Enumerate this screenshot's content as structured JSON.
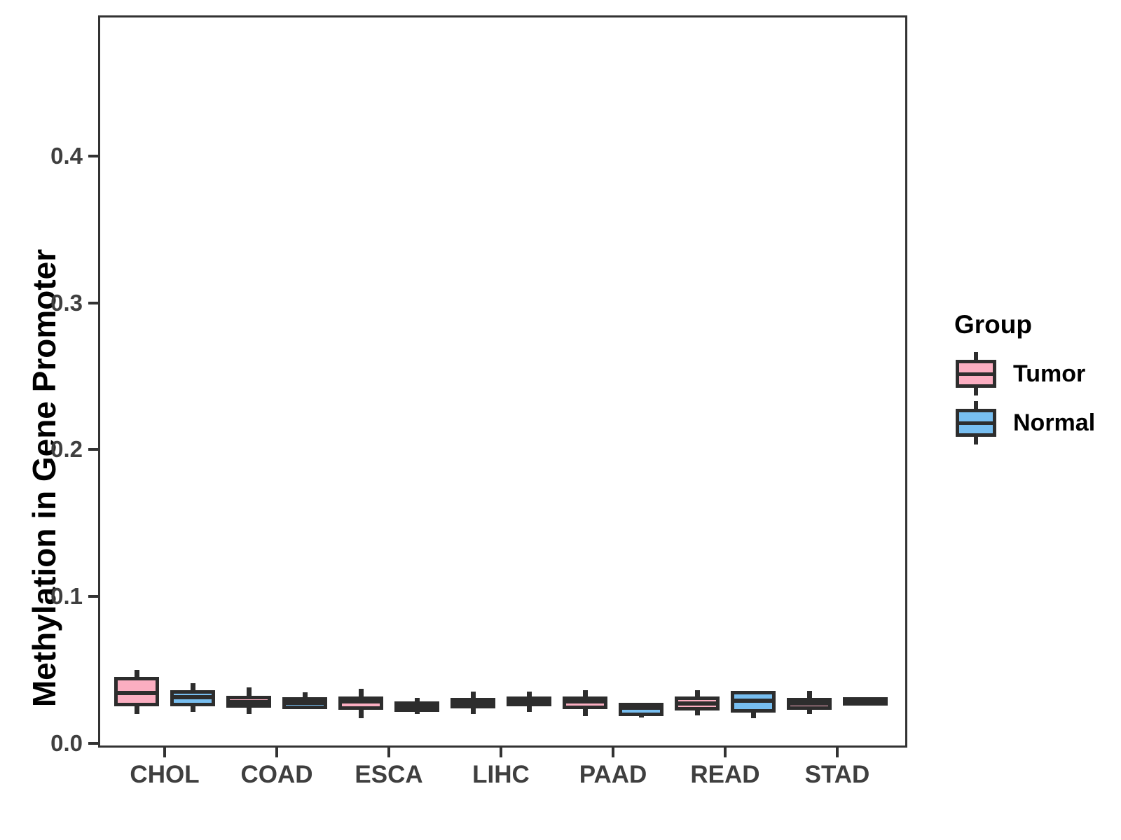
{
  "figure": {
    "background": "#FFFFFF",
    "description": "Grouped boxplot of methylation in gene promoter, tumor vs normal, across 7 cancer types"
  },
  "style": {
    "box_line_color": "#2D2D2D",
    "axis_line_color": "#333333",
    "tick_text_color": "#3F3F3F",
    "title_text_color": "#000000",
    "tumor_fill": "#FBAEC1",
    "normal_fill": "#77BEF0"
  },
  "legend": {
    "title": "Group",
    "entries": [
      {
        "label": "Tumor",
        "fill": "#FBAEC1"
      },
      {
        "label": "Normal",
        "fill": "#77BEF0"
      }
    ]
  },
  "chart_data": {
    "type": "boxplot",
    "title": "",
    "xlabel": "",
    "ylabel": "Methylation in Gene Promoter",
    "categories": [
      "CHOL",
      "COAD",
      "ESCA",
      "LIHC",
      "PAAD",
      "READ",
      "STAD"
    ],
    "y_ticks": [
      0.0,
      0.1,
      0.2,
      0.3,
      0.4
    ],
    "y_tick_labels": [
      "0.0",
      "0.1",
      "0.2",
      "0.3",
      "0.4"
    ],
    "ylim": [
      -0.003,
      0.496
    ],
    "grid": false,
    "legend_title": "Group",
    "legend_position": "right",
    "series": [
      {
        "name": "Tumor",
        "fill": "#FBAEC1",
        "boxes": [
          {
            "category": "CHOL",
            "whisker_low": 0.02,
            "q1": 0.026,
            "median": 0.034,
            "q3": 0.044,
            "whisker_high": 0.05
          },
          {
            "category": "COAD",
            "whisker_low": 0.02,
            "q1": 0.025,
            "median": 0.028,
            "q3": 0.0315,
            "whisker_high": 0.038
          },
          {
            "category": "ESCA",
            "whisker_low": 0.017,
            "q1": 0.0235,
            "median": 0.0285,
            "q3": 0.031,
            "whisker_high": 0.037
          },
          {
            "category": "LIHC",
            "whisker_low": 0.02,
            "q1": 0.0245,
            "median": 0.027,
            "q3": 0.03,
            "whisker_high": 0.035
          },
          {
            "category": "PAAD",
            "whisker_low": 0.0185,
            "q1": 0.024,
            "median": 0.0285,
            "q3": 0.031,
            "whisker_high": 0.036
          },
          {
            "category": "READ",
            "whisker_low": 0.019,
            "q1": 0.023,
            "median": 0.027,
            "q3": 0.031,
            "whisker_high": 0.036
          },
          {
            "category": "STAD",
            "whisker_low": 0.02,
            "q1": 0.0235,
            "median": 0.027,
            "q3": 0.03,
            "whisker_high": 0.0355
          }
        ]
      },
      {
        "name": "Normal",
        "fill": "#77BEF0",
        "boxes": [
          {
            "category": "CHOL",
            "whisker_low": 0.0215,
            "q1": 0.026,
            "median": 0.0315,
            "q3": 0.035,
            "whisker_high": 0.041
          },
          {
            "category": "COAD",
            "whisker_low": 0.023,
            "q1": 0.024,
            "median": 0.0275,
            "q3": 0.0305,
            "whisker_high": 0.0345
          },
          {
            "category": "ESCA",
            "whisker_low": 0.02,
            "q1": 0.0225,
            "median": 0.025,
            "q3": 0.0275,
            "whisker_high": 0.031
          },
          {
            "category": "LIHC",
            "whisker_low": 0.0215,
            "q1": 0.026,
            "median": 0.0285,
            "q3": 0.031,
            "whisker_high": 0.035
          },
          {
            "category": "PAAD",
            "whisker_low": 0.0175,
            "q1": 0.0195,
            "median": 0.024,
            "q3": 0.0265,
            "whisker_high": 0.027
          },
          {
            "category": "READ",
            "whisker_low": 0.017,
            "q1": 0.022,
            "median": 0.029,
            "q3": 0.0345,
            "whisker_high": 0.035
          },
          {
            "category": "STAD",
            "whisker_low": 0.028,
            "q1": 0.028,
            "median": 0.0292,
            "q3": 0.0305,
            "whisker_high": 0.0305
          }
        ]
      }
    ]
  }
}
